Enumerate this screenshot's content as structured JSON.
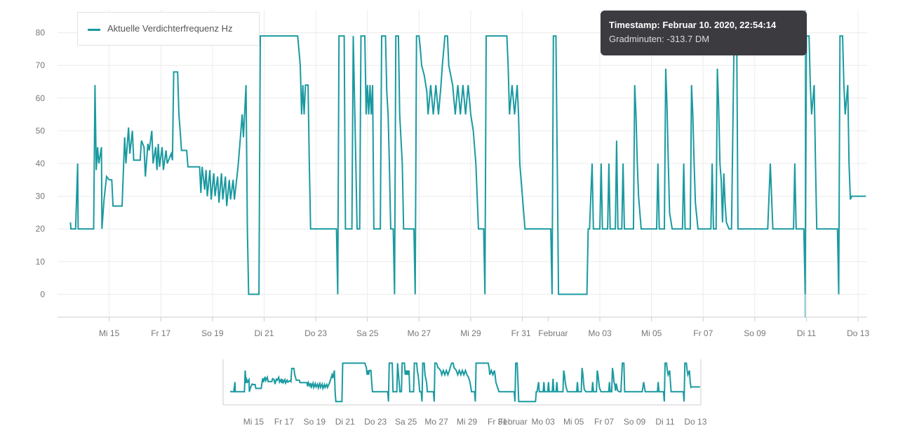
{
  "legend": {
    "label": "Aktuelle Verdichterfrequenz Hz"
  },
  "tooltip": {
    "title": "Timestamp: Februar 10. 2020, 22:54:14",
    "value": "Gradminuten: -313.7 DM"
  },
  "colors": {
    "series": "#1a9aa0",
    "grid": "#ececec",
    "axis": "#cccccc",
    "tooltip_bg": "#3b3b40"
  },
  "chart_data": {
    "type": "line",
    "x_unit": "days since Jan 13 2020 00:00",
    "ylim": [
      -7,
      87
    ],
    "y_ticks": [
      0,
      10,
      20,
      30,
      40,
      50,
      60,
      70,
      80
    ],
    "x_ticks": [
      {
        "label": "Mi 15",
        "x": 2
      },
      {
        "label": "Fr 17",
        "x": 4
      },
      {
        "label": "So 19",
        "x": 6
      },
      {
        "label": "Di 21",
        "x": 8
      },
      {
        "label": "Do 23",
        "x": 10
      },
      {
        "label": "Sa 25",
        "x": 12
      },
      {
        "label": "Mo 27",
        "x": 14
      },
      {
        "label": "Mi 29",
        "x": 16
      },
      {
        "label": "Fr 31",
        "x": 18
      },
      {
        "label": "Februar",
        "x": 19
      },
      {
        "label": "Mo 03",
        "x": 21
      },
      {
        "label": "Mi 05",
        "x": 23
      },
      {
        "label": "Fr 07",
        "x": 25
      },
      {
        "label": "So 09",
        "x": 27
      },
      {
        "label": "Di 11",
        "x": 29
      },
      {
        "label": "Do 13",
        "x": 31
      }
    ],
    "cursor_x": 28.95,
    "series": [
      {
        "name": "Aktuelle Verdichterfrequenz Hz",
        "points": [
          [
            0.5,
            22
          ],
          [
            0.52,
            20
          ],
          [
            0.7,
            20
          ],
          [
            0.78,
            40
          ],
          [
            0.8,
            20
          ],
          [
            1.1,
            20
          ],
          [
            1.4,
            20
          ],
          [
            1.45,
            64
          ],
          [
            1.5,
            38
          ],
          [
            1.55,
            45
          ],
          [
            1.6,
            40
          ],
          [
            1.7,
            45
          ],
          [
            1.72,
            20
          ],
          [
            1.8,
            29
          ],
          [
            1.9,
            36
          ],
          [
            2.0,
            35
          ],
          [
            2.1,
            35
          ],
          [
            2.15,
            27
          ],
          [
            2.5,
            27
          ],
          [
            2.55,
            38
          ],
          [
            2.6,
            48
          ],
          [
            2.65,
            40
          ],
          [
            2.75,
            51
          ],
          [
            2.8,
            43
          ],
          [
            2.9,
            50
          ],
          [
            2.95,
            41
          ],
          [
            3.2,
            41
          ],
          [
            3.25,
            47
          ],
          [
            3.35,
            45
          ],
          [
            3.4,
            36
          ],
          [
            3.5,
            46
          ],
          [
            3.55,
            44
          ],
          [
            3.65,
            50
          ],
          [
            3.7,
            40
          ],
          [
            3.8,
            45
          ],
          [
            3.85,
            38
          ],
          [
            3.9,
            46
          ],
          [
            3.95,
            39
          ],
          [
            4.05,
            45
          ],
          [
            4.1,
            38
          ],
          [
            4.2,
            44
          ],
          [
            4.25,
            40
          ],
          [
            4.4,
            43
          ],
          [
            4.45,
            41
          ],
          [
            4.5,
            68
          ],
          [
            4.65,
            68
          ],
          [
            4.7,
            55
          ],
          [
            4.75,
            50
          ],
          [
            4.8,
            44
          ],
          [
            5.0,
            44
          ],
          [
            5.05,
            39
          ],
          [
            5.5,
            39
          ],
          [
            5.55,
            31
          ],
          [
            5.6,
            39
          ],
          [
            5.7,
            32
          ],
          [
            5.75,
            38
          ],
          [
            5.8,
            30
          ],
          [
            5.9,
            38
          ],
          [
            5.95,
            29
          ],
          [
            6.05,
            37
          ],
          [
            6.1,
            30
          ],
          [
            6.2,
            36
          ],
          [
            6.25,
            28
          ],
          [
            6.35,
            37
          ],
          [
            6.4,
            29
          ],
          [
            6.5,
            36
          ],
          [
            6.55,
            27
          ],
          [
            6.65,
            35
          ],
          [
            6.7,
            29
          ],
          [
            6.8,
            35
          ],
          [
            6.85,
            29
          ],
          [
            6.95,
            36
          ],
          [
            7.0,
            40
          ],
          [
            7.1,
            50
          ],
          [
            7.15,
            55
          ],
          [
            7.2,
            48
          ],
          [
            7.3,
            64
          ],
          [
            7.35,
            20
          ],
          [
            7.4,
            0
          ],
          [
            7.8,
            0
          ],
          [
            7.85,
            79
          ],
          [
            9.3,
            79
          ],
          [
            9.4,
            70
          ],
          [
            9.45,
            55
          ],
          [
            9.5,
            64
          ],
          [
            9.55,
            55
          ],
          [
            9.6,
            64
          ],
          [
            9.7,
            64
          ],
          [
            9.75,
            40
          ],
          [
            9.8,
            20
          ],
          [
            10.8,
            20
          ],
          [
            10.85,
            0
          ],
          [
            10.9,
            79
          ],
          [
            11.1,
            79
          ],
          [
            11.15,
            20
          ],
          [
            11.4,
            20
          ],
          [
            11.45,
            79
          ],
          [
            11.55,
            40
          ],
          [
            11.6,
            20
          ],
          [
            11.7,
            20
          ],
          [
            11.75,
            79
          ],
          [
            11.9,
            79
          ],
          [
            11.95,
            55
          ],
          [
            12.0,
            64
          ],
          [
            12.05,
            55
          ],
          [
            12.1,
            64
          ],
          [
            12.15,
            55
          ],
          [
            12.2,
            64
          ],
          [
            12.25,
            20
          ],
          [
            12.5,
            20
          ],
          [
            12.55,
            79
          ],
          [
            12.7,
            79
          ],
          [
            12.75,
            62
          ],
          [
            12.8,
            55
          ],
          [
            12.85,
            40
          ],
          [
            12.9,
            20
          ],
          [
            13.0,
            20
          ],
          [
            13.05,
            0
          ],
          [
            13.1,
            79
          ],
          [
            13.2,
            79
          ],
          [
            13.25,
            55
          ],
          [
            13.35,
            40
          ],
          [
            13.4,
            20
          ],
          [
            13.8,
            20
          ],
          [
            13.85,
            0
          ],
          [
            13.9,
            79
          ],
          [
            14.0,
            79
          ],
          [
            14.05,
            75
          ],
          [
            14.1,
            70
          ],
          [
            14.2,
            67
          ],
          [
            14.3,
            62
          ],
          [
            14.35,
            55
          ],
          [
            14.45,
            64
          ],
          [
            14.55,
            55
          ],
          [
            14.65,
            64
          ],
          [
            14.75,
            55
          ],
          [
            14.85,
            64
          ],
          [
            14.9,
            70
          ],
          [
            15.0,
            79
          ],
          [
            15.1,
            79
          ],
          [
            15.15,
            70
          ],
          [
            15.3,
            64
          ],
          [
            15.4,
            55
          ],
          [
            15.5,
            64
          ],
          [
            15.6,
            55
          ],
          [
            15.7,
            64
          ],
          [
            15.8,
            55
          ],
          [
            15.9,
            64
          ],
          [
            16.0,
            55
          ],
          [
            16.1,
            50
          ],
          [
            16.2,
            40
          ],
          [
            16.3,
            20
          ],
          [
            16.5,
            20
          ],
          [
            16.55,
            0
          ],
          [
            16.6,
            79
          ],
          [
            17.4,
            79
          ],
          [
            17.45,
            70
          ],
          [
            17.5,
            55
          ],
          [
            17.6,
            64
          ],
          [
            17.7,
            55
          ],
          [
            17.8,
            64
          ],
          [
            17.85,
            55
          ],
          [
            17.9,
            40
          ],
          [
            18.0,
            30
          ],
          [
            18.1,
            20
          ],
          [
            18.2,
            20
          ],
          [
            18.25,
            20
          ],
          [
            19.1,
            20
          ],
          [
            19.15,
            0
          ],
          [
            19.2,
            79
          ],
          [
            19.3,
            79
          ],
          [
            19.35,
            40
          ],
          [
            19.4,
            0
          ],
          [
            20.5,
            0
          ],
          [
            20.55,
            20
          ],
          [
            20.6,
            20
          ],
          [
            20.7,
            40
          ],
          [
            20.75,
            20
          ],
          [
            20.9,
            20
          ],
          [
            21.0,
            20
          ],
          [
            21.05,
            40
          ],
          [
            21.1,
            20
          ],
          [
            21.3,
            20
          ],
          [
            21.35,
            40
          ],
          [
            21.4,
            20
          ],
          [
            21.6,
            20
          ],
          [
            21.65,
            47
          ],
          [
            21.7,
            20
          ],
          [
            21.85,
            20
          ],
          [
            21.9,
            40
          ],
          [
            21.95,
            20
          ],
          [
            22.3,
            20
          ],
          [
            22.35,
            64
          ],
          [
            22.4,
            55
          ],
          [
            22.45,
            40
          ],
          [
            22.5,
            30
          ],
          [
            22.6,
            20
          ],
          [
            23.2,
            20
          ],
          [
            23.25,
            40
          ],
          [
            23.3,
            20
          ],
          [
            23.5,
            20
          ],
          [
            23.55,
            69
          ],
          [
            23.6,
            58
          ],
          [
            23.65,
            40
          ],
          [
            23.7,
            25
          ],
          [
            23.8,
            20
          ],
          [
            24.2,
            20
          ],
          [
            24.25,
            40
          ],
          [
            24.3,
            20
          ],
          [
            24.5,
            20
          ],
          [
            24.55,
            64
          ],
          [
            24.6,
            55
          ],
          [
            24.65,
            40
          ],
          [
            24.7,
            28
          ],
          [
            24.8,
            20
          ],
          [
            25.3,
            20
          ],
          [
            25.35,
            40
          ],
          [
            25.4,
            20
          ],
          [
            25.5,
            20
          ],
          [
            25.55,
            69
          ],
          [
            25.6,
            58
          ],
          [
            25.65,
            40
          ],
          [
            25.7,
            35
          ],
          [
            25.75,
            22
          ],
          [
            25.8,
            37
          ],
          [
            25.85,
            28
          ],
          [
            25.9,
            22
          ],
          [
            26.0,
            20
          ],
          [
            26.1,
            20
          ],
          [
            26.2,
            79
          ],
          [
            26.3,
            79
          ],
          [
            26.35,
            20
          ],
          [
            27.0,
            20
          ],
          [
            27.5,
            20
          ],
          [
            27.6,
            40
          ],
          [
            27.7,
            20
          ],
          [
            28.5,
            20
          ],
          [
            28.55,
            40
          ],
          [
            28.6,
            20
          ],
          [
            28.9,
            20
          ],
          [
            28.95,
            0
          ],
          [
            29.0,
            79
          ],
          [
            29.1,
            79
          ],
          [
            29.15,
            64
          ],
          [
            29.2,
            55
          ],
          [
            29.3,
            64
          ],
          [
            29.35,
            40
          ],
          [
            29.4,
            20
          ],
          [
            30.2,
            20
          ],
          [
            30.25,
            0
          ],
          [
            30.3,
            79
          ],
          [
            30.4,
            79
          ],
          [
            30.45,
            64
          ],
          [
            30.5,
            55
          ],
          [
            30.6,
            64
          ],
          [
            30.65,
            40
          ],
          [
            30.7,
            29
          ],
          [
            30.75,
            30
          ],
          [
            31.3,
            30
          ]
        ]
      }
    ]
  },
  "navigator": {
    "x_tick_labels": [
      "Mi 15",
      "Fr 17",
      "So 19",
      "Di 21",
      "Do 23",
      "Sa 25",
      "Mo 27",
      "Mi 29",
      "Fr 31",
      "Februar",
      "Mo 03",
      "Mi 05",
      "Fr 07",
      "So 09",
      "Di 11",
      "Do 13"
    ]
  }
}
